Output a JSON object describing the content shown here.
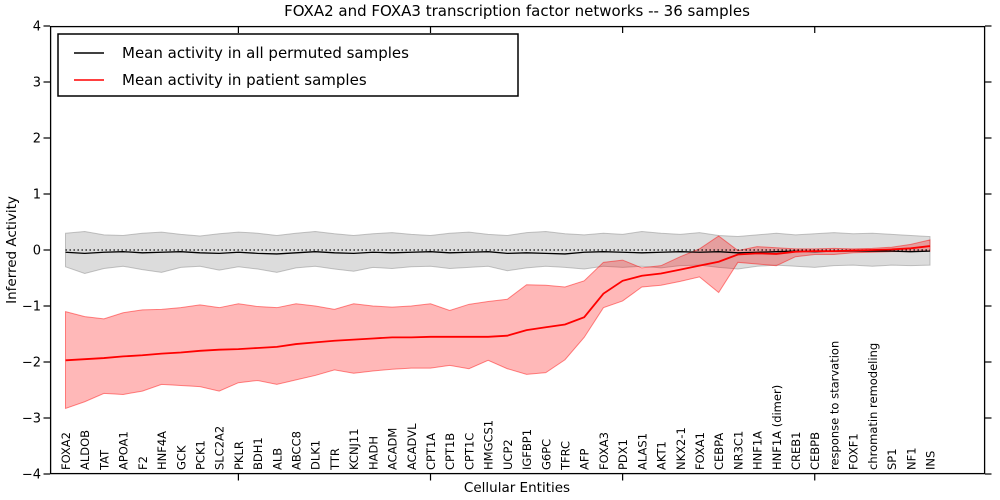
{
  "title": "FOXA2 and FOXA3 transcription factor networks -- 36 samples",
  "axes": {
    "ylabel": "Inferred Activity",
    "xlabel": "Cellular Entities",
    "ytick_labels": [
      "4",
      "3",
      "2",
      "1",
      "0",
      "−1",
      "−2",
      "−3",
      "−4"
    ],
    "ytick_values": [
      4,
      3,
      2,
      1,
      0,
      -1,
      -2,
      -3,
      -4
    ],
    "xtick_data_positions": [
      10,
      20,
      30,
      40
    ],
    "ylim": [
      -4,
      4
    ]
  },
  "legend": {
    "items": [
      {
        "label": "Mean activity in all permuted samples",
        "color": "#000000"
      },
      {
        "label": "Mean activity in patient samples",
        "color": "#ff0000"
      }
    ]
  },
  "chart_data": {
    "type": "line",
    "title": "FOXA2 and FOXA3 transcription factor networks -- 36 samples",
    "xlabel": "Cellular Entities",
    "ylabel": "Inferred Activity",
    "ylim": [
      -4,
      4
    ],
    "grid": false,
    "legend_position": "upper left",
    "categories": [
      "FOXA2",
      "ALDOB",
      "TAT",
      "APOA1",
      "F2",
      "HNF4A",
      "GCK",
      "PCK1",
      "SLC2A2",
      "PKLR",
      "BDH1",
      "ALB",
      "ABCC8",
      "DLK1",
      "TTR",
      "KCNJ11",
      "HADH",
      "ACADM",
      "ACADVL",
      "CPT1A",
      "CPT1B",
      "CPT1C",
      "HMGCS1",
      "UCP2",
      "IGFBP1",
      "G6PC",
      "TFRC",
      "AFP",
      "FOXA3",
      "PDX1",
      "ALAS1",
      "AKT1",
      "NKX2-1",
      "FOXA1",
      "CEBPA",
      "NR3C1",
      "HNF1A",
      "HNF1A (dimer)",
      "CREB1",
      "CEBPB",
      "response to starvation",
      "FOXF1",
      "chromatin remodeling",
      "SP1",
      "NF1",
      "INS"
    ],
    "series": [
      {
        "name": "Mean activity in all permuted samples",
        "color": "#000000",
        "style": "solid",
        "width": 1.3,
        "values": [
          -0.04,
          -0.06,
          -0.04,
          -0.03,
          -0.05,
          -0.04,
          -0.03,
          -0.05,
          -0.06,
          -0.04,
          -0.06,
          -0.07,
          -0.05,
          -0.03,
          -0.05,
          -0.06,
          -0.04,
          -0.05,
          -0.04,
          -0.03,
          -0.05,
          -0.04,
          -0.03,
          -0.06,
          -0.05,
          -0.06,
          -0.07,
          -0.04,
          -0.03,
          -0.04,
          -0.05,
          -0.04,
          -0.03,
          -0.04,
          -0.03,
          -0.05,
          -0.04,
          -0.03,
          -0.02,
          -0.03,
          -0.02,
          -0.02,
          -0.02,
          -0.02,
          -0.03,
          -0.02
        ]
      },
      {
        "name": "Mean activity in patient samples",
        "color": "#ff0000",
        "style": "solid",
        "width": 1.8,
        "values": [
          -1.97,
          -1.95,
          -1.93,
          -1.9,
          -1.88,
          -1.85,
          -1.83,
          -1.8,
          -1.78,
          -1.77,
          -1.75,
          -1.73,
          -1.68,
          -1.65,
          -1.62,
          -1.6,
          -1.58,
          -1.56,
          -1.56,
          -1.55,
          -1.55,
          -1.55,
          -1.55,
          -1.53,
          -1.43,
          -1.38,
          -1.33,
          -1.2,
          -0.78,
          -0.55,
          -0.46,
          -0.42,
          -0.35,
          -0.28,
          -0.21,
          -0.08,
          -0.06,
          -0.07,
          -0.03,
          -0.02,
          -0.02,
          -0.01,
          0.0,
          0.01,
          0.03,
          0.07
        ]
      }
    ],
    "bands": [
      {
        "name": "permuted samples range",
        "color": "#808080",
        "fill_opacity": 0.28,
        "upper": [
          0.3,
          0.33,
          0.27,
          0.26,
          0.3,
          0.32,
          0.28,
          0.25,
          0.29,
          0.32,
          0.3,
          0.26,
          0.3,
          0.33,
          0.29,
          0.26,
          0.29,
          0.31,
          0.28,
          0.26,
          0.3,
          0.32,
          0.28,
          0.26,
          0.31,
          0.33,
          0.29,
          0.27,
          0.3,
          0.28,
          0.33,
          0.3,
          0.28,
          0.31,
          0.26,
          0.24,
          0.27,
          0.3,
          0.27,
          0.29,
          0.31,
          0.29,
          0.3,
          0.28,
          0.26,
          0.24
        ],
        "lower": [
          -0.3,
          -0.42,
          -0.33,
          -0.29,
          -0.35,
          -0.4,
          -0.31,
          -0.29,
          -0.36,
          -0.3,
          -0.34,
          -0.4,
          -0.32,
          -0.29,
          -0.34,
          -0.38,
          -0.31,
          -0.33,
          -0.3,
          -0.29,
          -0.33,
          -0.31,
          -0.29,
          -0.37,
          -0.32,
          -0.29,
          -0.31,
          -0.34,
          -0.29,
          -0.31,
          -0.29,
          -0.32,
          -0.28,
          -0.27,
          -0.31,
          -0.34,
          -0.29,
          -0.27,
          -0.29,
          -0.31,
          -0.28,
          -0.27,
          -0.29,
          -0.27,
          -0.28,
          -0.27
        ]
      },
      {
        "name": "patient samples range",
        "color": "#ff0000",
        "fill_opacity": 0.28,
        "upper": [
          -1.1,
          -1.19,
          -1.23,
          -1.12,
          -1.07,
          -1.06,
          -1.03,
          -0.98,
          -1.03,
          -0.96,
          -1.01,
          -1.03,
          -0.96,
          -1.0,
          -1.06,
          -0.96,
          -1.0,
          -1.02,
          -1.0,
          -0.96,
          -1.08,
          -0.97,
          -0.92,
          -0.88,
          -0.62,
          -0.63,
          -0.66,
          -0.55,
          -0.22,
          -0.18,
          -0.32,
          -0.28,
          -0.12,
          0.02,
          0.25,
          -0.01,
          0.06,
          0.04,
          0.02,
          0.02,
          0.03,
          0.02,
          0.03,
          0.05,
          0.1,
          0.18
        ],
        "lower": [
          -2.83,
          -2.71,
          -2.56,
          -2.58,
          -2.52,
          -2.4,
          -2.42,
          -2.44,
          -2.52,
          -2.37,
          -2.33,
          -2.4,
          -2.32,
          -2.24,
          -2.14,
          -2.2,
          -2.16,
          -2.13,
          -2.11,
          -2.11,
          -2.06,
          -2.12,
          -1.97,
          -2.12,
          -2.22,
          -2.19,
          -1.96,
          -1.56,
          -1.03,
          -0.91,
          -0.66,
          -0.63,
          -0.56,
          -0.48,
          -0.76,
          -0.22,
          -0.25,
          -0.28,
          -0.12,
          -0.08,
          -0.08,
          -0.05,
          -0.04,
          -0.03,
          -0.03,
          -0.02
        ]
      }
    ],
    "reference_line": {
      "y": 0,
      "style": "dotted",
      "color": "#000000"
    }
  }
}
